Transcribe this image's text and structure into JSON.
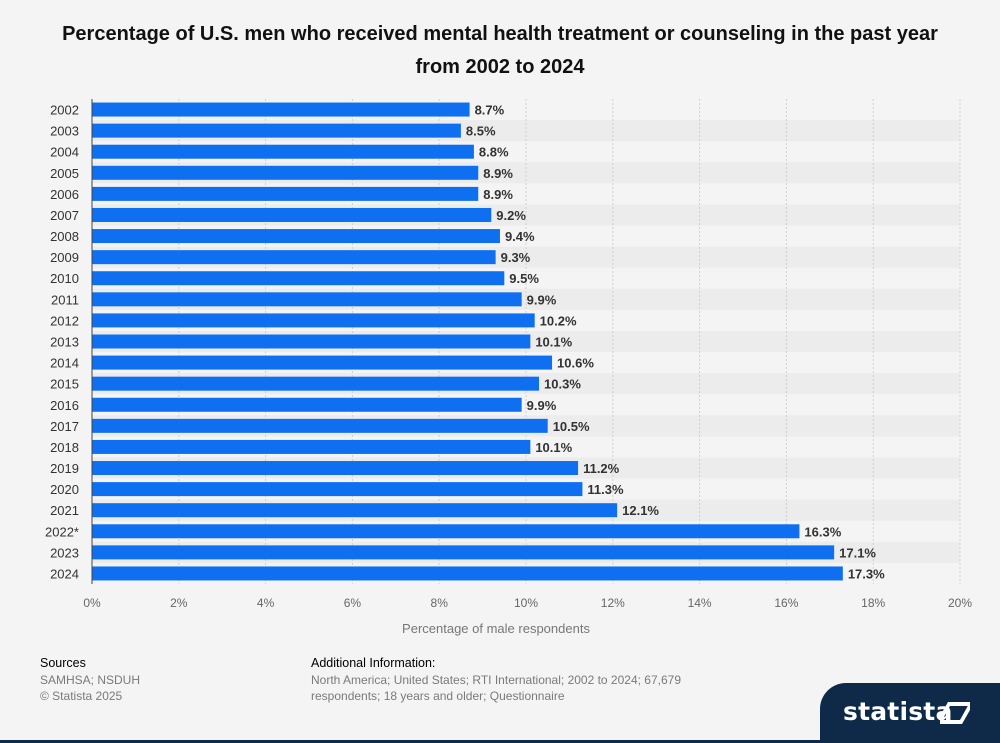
{
  "chart_data": {
    "type": "bar",
    "orientation": "horizontal",
    "title": "Percentage of U.S. men who received mental health treatment or counseling in the past year from 2002 to 2024",
    "xlabel": "Percentage of male respondents",
    "ylabel": "",
    "xlim": [
      0,
      20
    ],
    "xticks": [
      "0%",
      "2%",
      "4%",
      "6%",
      "8%",
      "10%",
      "12%",
      "14%",
      "16%",
      "18%",
      "20%"
    ],
    "categories": [
      "2002",
      "2003",
      "2004",
      "2005",
      "2006",
      "2007",
      "2008",
      "2009",
      "2010",
      "2011",
      "2012",
      "2013",
      "2014",
      "2015",
      "2016",
      "2017",
      "2018",
      "2019",
      "2020",
      "2021",
      "2022*",
      "2023",
      "2024"
    ],
    "values": [
      8.7,
      8.5,
      8.8,
      8.9,
      8.9,
      9.2,
      9.4,
      9.3,
      9.5,
      9.9,
      10.2,
      10.1,
      10.6,
      10.3,
      9.9,
      10.5,
      10.1,
      11.2,
      11.3,
      12.1,
      16.3,
      17.1,
      17.3
    ],
    "value_labels": [
      "8.7%",
      "8.5%",
      "8.8%",
      "8.9%",
      "8.9%",
      "9.2%",
      "9.4%",
      "9.3%",
      "9.5%",
      "9.9%",
      "10.2%",
      "10.1%",
      "10.6%",
      "10.3%",
      "9.9%",
      "10.5%",
      "10.1%",
      "11.2%",
      "11.3%",
      "12.1%",
      "16.3%",
      "17.1%",
      "17.3%"
    ],
    "bar_color": "#0e6ff0",
    "grid": true,
    "legend": "none"
  },
  "footer": {
    "sources_heading": "Sources",
    "sources_text": "SAMHSA; NSDUH",
    "copyright": "© Statista 2025",
    "additional_heading": "Additional Information:",
    "additional_line1": "North America; United States; RTI International; 2002 to 2024; 67,679",
    "additional_line2": "respondents; 18 years and older; Questionnaire"
  },
  "brand": {
    "name": "statista",
    "color": "#0f2a48"
  }
}
